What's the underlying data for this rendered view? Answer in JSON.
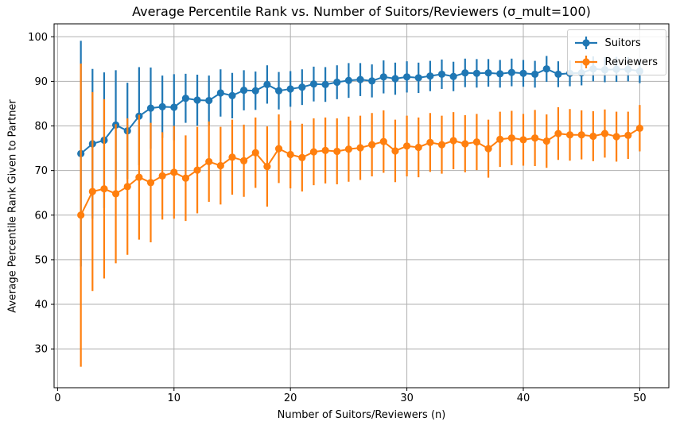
{
  "figure": {
    "title": "Average Percentile Rank vs. Number of Suitors/Reviewers (σ_mult=100)",
    "xlabel": "Number of Suitors/Reviewers (n)",
    "ylabel": "Average Percentile Rank Given to Partner"
  },
  "chart_data": {
    "type": "line",
    "title": "Average Percentile Rank vs. Number of Suitors/Reviewers (σ_mult=100)",
    "xlabel": "Number of Suitors/Reviewers (n)",
    "ylabel": "Average Percentile Rank Given to Partner",
    "grid": true,
    "legend_position": "upper right",
    "error_bars": true,
    "marker": "o",
    "x_ticks": [
      0,
      10,
      20,
      30,
      40,
      50
    ],
    "y_ticks": [
      30,
      40,
      50,
      60,
      70,
      80,
      90,
      100
    ],
    "xlim": [
      -0.3,
      52.5
    ],
    "ylim": [
      21.3,
      102.9
    ],
    "x": [
      2,
      3,
      4,
      5,
      6,
      7,
      8,
      9,
      10,
      11,
      12,
      13,
      14,
      15,
      16,
      17,
      18,
      19,
      20,
      21,
      22,
      23,
      24,
      25,
      26,
      27,
      28,
      29,
      30,
      31,
      32,
      33,
      34,
      35,
      36,
      37,
      38,
      39,
      40,
      41,
      42,
      43,
      44,
      45,
      46,
      47,
      48,
      49,
      50
    ],
    "series": [
      {
        "name": "Suitors",
        "color": "#1f77b4",
        "values": [
          73.8,
          76.0,
          76.8,
          80.2,
          78.9,
          82.2,
          84.0,
          84.3,
          84.2,
          86.2,
          85.8,
          85.7,
          87.4,
          86.8,
          88.0,
          87.9,
          89.3,
          87.9,
          88.3,
          88.7,
          89.4,
          89.3,
          89.8,
          90.2,
          90.4,
          90.1,
          91.0,
          90.6,
          91.0,
          90.8,
          91.2,
          91.6,
          91.1,
          91.9,
          91.8,
          91.9,
          91.7,
          92.0,
          91.8,
          91.6,
          92.8,
          91.6,
          91.8,
          91.9,
          92.8,
          92.6,
          92.7,
          92.7,
          92.3
        ],
        "errors": [
          25.3,
          16.8,
          15.2,
          12.3,
          10.8,
          11.0,
          9.1,
          7.0,
          7.4,
          5.5,
          5.7,
          5.6,
          5.3,
          5.1,
          4.5,
          4.3,
          4.3,
          4.2,
          4.0,
          4.0,
          3.9,
          3.9,
          3.8,
          3.9,
          3.7,
          3.7,
          3.7,
          3.6,
          3.5,
          3.4,
          3.4,
          3.3,
          3.3,
          3.2,
          3.2,
          3.1,
          3.1,
          3.1,
          3.0,
          3.0,
          2.9,
          2.9,
          2.9,
          2.8,
          2.8,
          2.8,
          2.8,
          2.7,
          2.7
        ]
      },
      {
        "name": "Reviewers",
        "color": "#ff7f0e",
        "values": [
          60.0,
          65.3,
          65.9,
          64.8,
          66.4,
          68.5,
          67.3,
          68.8,
          69.6,
          68.3,
          70.1,
          72.0,
          71.1,
          73.0,
          72.2,
          74.0,
          70.9,
          74.9,
          73.6,
          72.9,
          74.2,
          74.5,
          74.3,
          74.8,
          75.1,
          75.8,
          76.5,
          74.4,
          75.5,
          75.2,
          76.3,
          75.8,
          76.7,
          76.0,
          76.4,
          74.9,
          77.0,
          77.3,
          76.9,
          77.3,
          76.6,
          78.3,
          78.0,
          78.0,
          77.7,
          78.3,
          77.6,
          77.9,
          79.5
        ],
        "errors": [
          34.0,
          22.3,
          20.1,
          15.6,
          15.3,
          14.0,
          13.4,
          9.8,
          10.4,
          9.6,
          9.7,
          9.0,
          8.7,
          8.4,
          8.1,
          7.9,
          9.0,
          7.7,
          7.6,
          7.6,
          7.5,
          7.4,
          7.4,
          7.3,
          7.2,
          7.1,
          7.0,
          7.0,
          6.8,
          6.7,
          6.6,
          6.5,
          6.4,
          6.4,
          6.3,
          6.5,
          6.2,
          6.1,
          5.8,
          6.3,
          6.0,
          5.9,
          5.8,
          5.5,
          5.6,
          5.4,
          5.6,
          5.3,
          5.2
        ]
      }
    ]
  },
  "style_colors": {
    "grid": "#b0b0b0",
    "frame": "#000000",
    "text": "#000000",
    "legend_border": "#cccccc"
  }
}
